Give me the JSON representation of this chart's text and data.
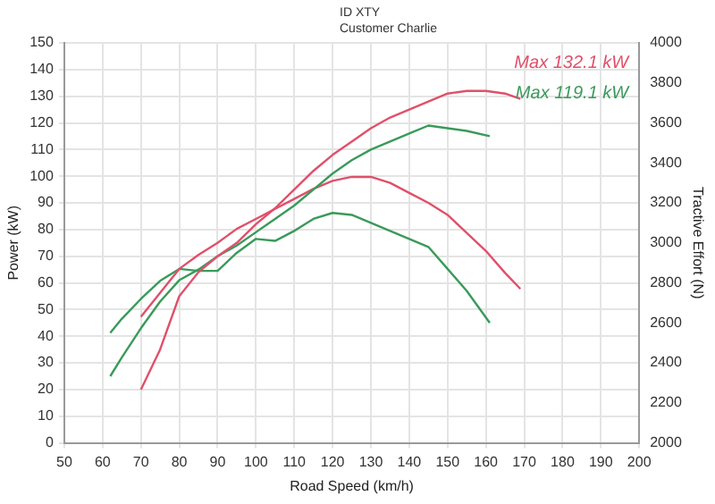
{
  "chart_data": {
    "type": "line",
    "xlabel": "Road Speed (km/h)",
    "ylabel": "Power (kW)",
    "y2label": "Tractive Effort (N)",
    "annotations": [
      "ID XTY",
      "Customer Charlie"
    ],
    "xlim": [
      50,
      200
    ],
    "xticks": [
      50,
      60,
      70,
      80,
      90,
      100,
      110,
      120,
      130,
      140,
      150,
      160,
      170,
      180,
      190,
      200
    ],
    "ylim": [
      0,
      150
    ],
    "yticks": [
      0,
      10,
      20,
      30,
      40,
      50,
      60,
      70,
      80,
      90,
      100,
      110,
      120,
      130,
      140,
      150
    ],
    "y2lim": [
      2000,
      4000
    ],
    "y2ticks": [
      2000,
      2200,
      2400,
      2600,
      2800,
      3000,
      3200,
      3400,
      3600,
      3800,
      4000
    ],
    "grid": true,
    "legend": false,
    "marker": "none",
    "line_style": "solid",
    "series": [
      {
        "name": "Max 132.1 kW",
        "color": "#e0506a",
        "x": [
          70,
          75,
          80,
          85,
          90,
          95,
          100,
          105,
          110,
          115,
          120,
          125,
          130,
          135,
          140,
          145,
          150,
          155,
          160,
          165,
          169
        ],
        "values": [
          20,
          35,
          55,
          64,
          70,
          75,
          82,
          88,
          95,
          102,
          108,
          113,
          118,
          122,
          125,
          128,
          131,
          132,
          132,
          131,
          129
        ]
      },
      {
        "name": "Max 119.1 kW",
        "color": "#3a9a5a",
        "x": [
          62,
          65,
          70,
          75,
          80,
          85,
          90,
          95,
          100,
          105,
          110,
          115,
          120,
          125,
          130,
          135,
          140,
          145,
          150,
          155,
          161
        ],
        "values": [
          25,
          32,
          43,
          53,
          61,
          65,
          70,
          74,
          79,
          84,
          89,
          95,
          101,
          106,
          110,
          113,
          116,
          119,
          118,
          117,
          115
        ]
      },
      {
        "color": "#e0506a",
        "axis": "y2",
        "x": [
          70,
          75,
          80,
          85,
          90,
          95,
          100,
          105,
          110,
          115,
          120,
          125,
          130,
          135,
          140,
          145,
          150,
          155,
          160,
          165,
          169
        ],
        "values": [
          2630,
          2750,
          2870,
          2940,
          3000,
          3070,
          3120,
          3170,
          3220,
          3270,
          3310,
          3330,
          3330,
          3300,
          3250,
          3200,
          3140,
          3050,
          2960,
          2850,
          2770
        ]
      },
      {
        "color": "#3a9a5a",
        "axis": "y2",
        "x": [
          62,
          65,
          70,
          75,
          80,
          85,
          90,
          95,
          100,
          105,
          110,
          115,
          120,
          125,
          130,
          135,
          140,
          145,
          150,
          155,
          161
        ],
        "values": [
          2550,
          2620,
          2720,
          2810,
          2870,
          2860,
          2860,
          2950,
          3020,
          3010,
          3060,
          3120,
          3150,
          3140,
          3100,
          3060,
          3020,
          2980,
          2870,
          2760,
          2600
        ]
      }
    ]
  }
}
